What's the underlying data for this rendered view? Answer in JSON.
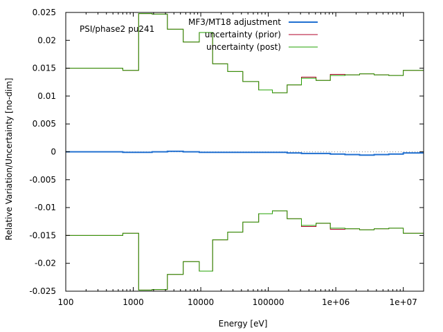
{
  "chart_data": {
    "type": "line",
    "step": true,
    "xscale": "log",
    "xlim": [
      100,
      20000000
    ],
    "ylim": [
      -0.025,
      0.025
    ],
    "xlabel": "Energy [eV]",
    "ylabel": "Relative Variation/Uncertainty [no-dim]",
    "annotation": "PSI/phase2 pu241",
    "legend_position": "top-right",
    "grid": false,
    "zero_line": true,
    "x_ticks": [
      {
        "value": 100,
        "label": "100"
      },
      {
        "value": 1000,
        "label": "1000"
      },
      {
        "value": 10000,
        "label": "10000"
      },
      {
        "value": 100000,
        "label": "100000"
      },
      {
        "value": 1000000,
        "label": "1e+06"
      },
      {
        "value": 10000000,
        "label": "1e+07"
      }
    ],
    "y_ticks": [
      {
        "value": 0.025,
        "label": "0.025"
      },
      {
        "value": 0.02,
        "label": "0.02"
      },
      {
        "value": 0.015,
        "label": "0.015"
      },
      {
        "value": 0.01,
        "label": "0.01"
      },
      {
        "value": 0.005,
        "label": "0.005"
      },
      {
        "value": 0,
        "label": "0"
      },
      {
        "value": -0.005,
        "label": "-0.005"
      },
      {
        "value": -0.01,
        "label": "-0.01"
      },
      {
        "value": -0.015,
        "label": "-0.015"
      },
      {
        "value": -0.02,
        "label": "-0.02"
      },
      {
        "value": -0.025,
        "label": "-0.025"
      }
    ],
    "bin_edges": [
      100,
      700,
      1200,
      1900,
      3200,
      5500,
      9500,
      15000,
      25000,
      42000,
      72000,
      115000,
      190000,
      310000,
      510000,
      830000,
      1370000,
      2250000,
      3700000,
      6100000,
      10000000,
      20000000
    ],
    "series": [
      {
        "name": "MF3/MT18 adjustment",
        "color": "#1f6fd0",
        "values": [
          0.0,
          -0.0001,
          -0.0001,
          0.0,
          0.0001,
          0.0,
          -0.0001,
          -0.0001,
          -0.0001,
          -0.0001,
          -0.0001,
          -0.0001,
          -0.0002,
          -0.0003,
          -0.0003,
          -0.0004,
          -0.0005,
          -0.0006,
          -0.0005,
          -0.0004,
          -0.0002
        ]
      },
      {
        "name": "uncertainty (prior)",
        "color": "#b0002a",
        "values": [
          0.015,
          0.0146,
          0.0248,
          0.0247,
          0.022,
          0.0197,
          0.0214,
          0.0158,
          0.0144,
          0.0126,
          0.0111,
          0.0106,
          0.012,
          0.0134,
          0.0128,
          0.0139,
          0.0138,
          0.014,
          0.0138,
          0.0137,
          0.0146
        ]
      },
      {
        "name": "uncertainty (post)",
        "color": "#22a000",
        "values": [
          0.015,
          0.0146,
          0.0248,
          0.0247,
          0.022,
          0.0197,
          0.0214,
          0.0158,
          0.0144,
          0.0126,
          0.0111,
          0.0106,
          0.012,
          0.0132,
          0.0128,
          0.0137,
          0.0138,
          0.014,
          0.0138,
          0.0137,
          0.0146
        ]
      }
    ]
  }
}
